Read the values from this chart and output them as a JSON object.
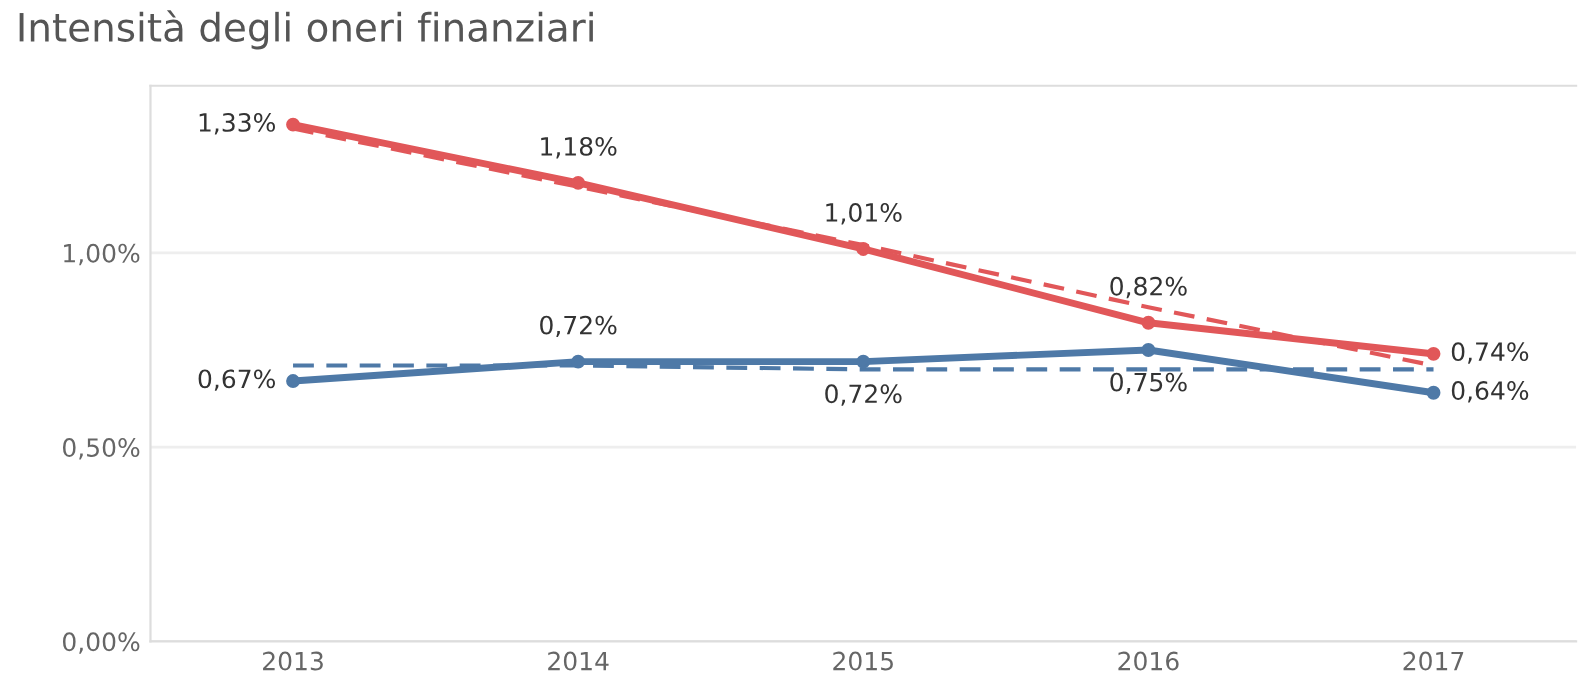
{
  "chart_data": {
    "type": "line",
    "title": "Intensità degli oneri finanziari",
    "x": [
      2013,
      2014,
      2015,
      2016,
      2017
    ],
    "xlim": [
      2012.5,
      2017.5
    ],
    "xticks": [
      2013,
      2014,
      2015,
      2016,
      2017
    ],
    "ylim": [
      0,
      1.43
    ],
    "yticks": [
      {
        "value": 0,
        "label": "0,00%"
      },
      {
        "value": 0.5,
        "label": "0,50%"
      },
      {
        "value": 1.0,
        "label": "1,00%"
      }
    ],
    "grid": "y",
    "legend": false,
    "series": [
      {
        "color": "#e15759",
        "values": [
          1.33,
          1.18,
          1.01,
          0.82,
          0.74
        ],
        "marker": "circle",
        "line_style": "solid",
        "value_labels": [
          "1,33%",
          "1,18%",
          "1,01%",
          "0,82%",
          "0,74%"
        ]
      },
      {
        "color": "#4e79a7",
        "values": [
          0.67,
          0.72,
          0.72,
          0.75,
          0.64
        ],
        "marker": "circle",
        "line_style": "solid",
        "value_labels": [
          "0,67%",
          "0,72%",
          "0,72%",
          "0,75%",
          "0,64%"
        ]
      },
      {
        "type": "line",
        "color": "#e15759",
        "values": [
          1.32,
          1.17,
          1.02,
          0.86,
          0.71
        ],
        "marker": "none",
        "line_style": "dashed"
      },
      {
        "type": "line",
        "color": "#4e79a7",
        "values": [
          0.71,
          0.71,
          0.7,
          0.7,
          0.7
        ],
        "marker": "none",
        "line_style": "dashed"
      }
    ]
  }
}
